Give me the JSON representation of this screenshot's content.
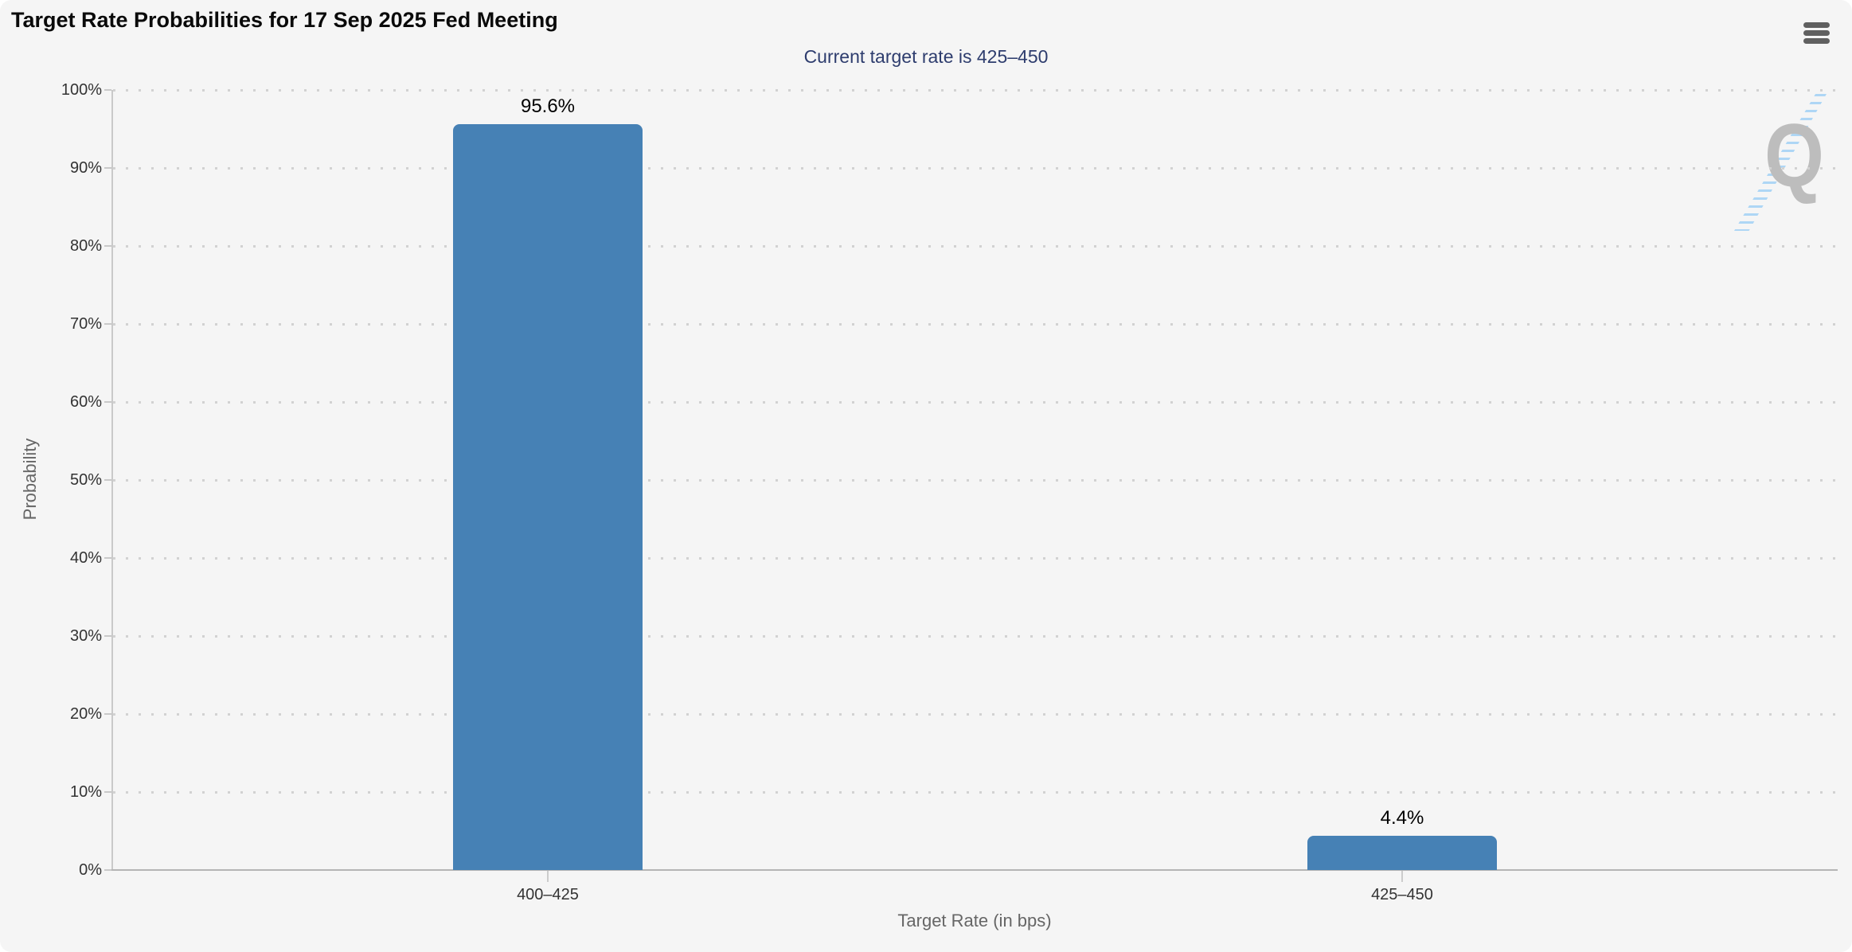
{
  "chart_data": {
    "type": "bar",
    "title": "Target Rate Probabilities for 17 Sep 2025 Fed Meeting",
    "subtitle": "Current target rate is 425–450",
    "categories": [
      "400–425",
      "425–450"
    ],
    "values": [
      95.6,
      4.4
    ],
    "value_labels": [
      "95.6%",
      "4.4%"
    ],
    "xlabel": "Target Rate (in bps)",
    "ylabel": "Probability",
    "ylim": [
      0,
      100
    ],
    "ytick_labels": [
      "0%",
      "10%",
      "20%",
      "30%",
      "40%",
      "50%",
      "60%",
      "70%",
      "80%",
      "90%",
      "100%"
    ],
    "grid": "horizontal-dotted",
    "legend_position": "none",
    "colors": {
      "bar": "#4681b5",
      "subtitle_text": "#2e3d6e",
      "tick_label_text": "#333333",
      "axis_title_text": "#666666",
      "panel_background": "#f5f5f5"
    }
  },
  "toolbar": {
    "menu_icon": "hamburger-icon"
  },
  "watermark": {
    "letter": "Q"
  }
}
